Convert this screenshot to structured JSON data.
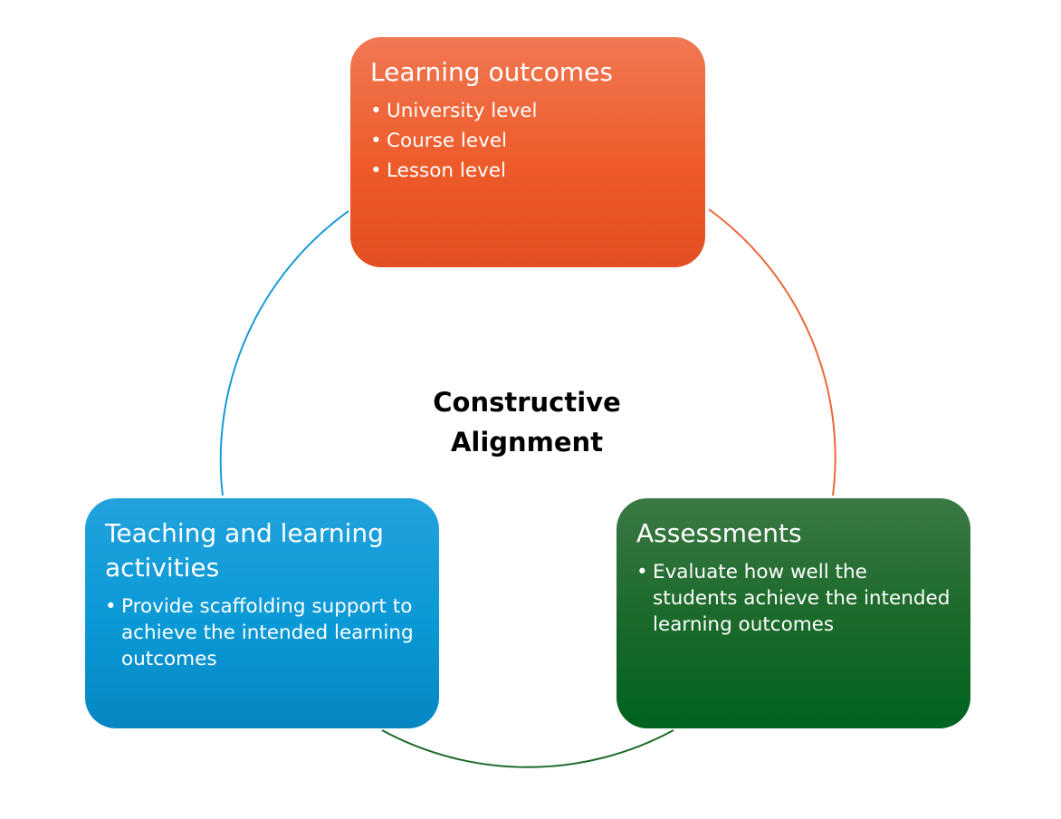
{
  "center_label": {
    "line1": "Constructive",
    "line2": "Alignment"
  },
  "nodes": {
    "learning_outcomes": {
      "title": "Learning outcomes",
      "bullets": [
        "University level",
        "Course level",
        "Lesson level"
      ],
      "color": "#ee5b2a"
    },
    "teaching_activities": {
      "title_line1": "Teaching and learning",
      "title_line2": "activities",
      "bullets": [
        "Provide scaffolding support to achieve the intended learning outcomes"
      ],
      "color": "#0999d6"
    },
    "assessments": {
      "title": "Assessments",
      "bullets": [
        "Evaluate how well the students achieve the intended learning outcomes"
      ],
      "color": "#1c6a2b"
    }
  },
  "bullet_glyph": "•"
}
